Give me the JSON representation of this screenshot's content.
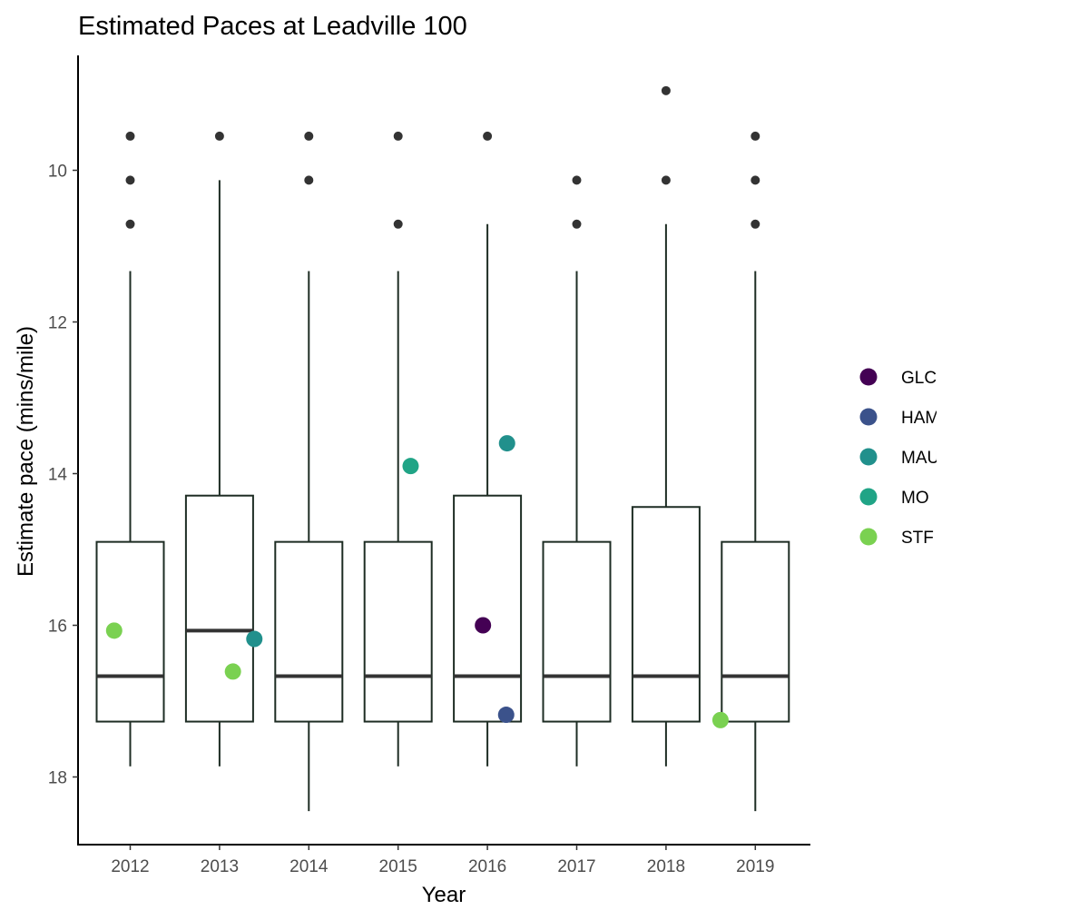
{
  "chart_data": {
    "type": "box",
    "title": "Estimated Paces at Leadville 100",
    "xlabel": "Year",
    "ylabel": "Estimate pace (mins/mile)",
    "y_reversed": true,
    "ylim": [
      18.9,
      8.7
    ],
    "yticks": [
      10,
      12,
      14,
      16,
      18
    ],
    "categories": [
      "2012",
      "2013",
      "2014",
      "2015",
      "2016",
      "2017",
      "2018",
      "2019"
    ],
    "boxes": [
      {
        "year": "2012",
        "whisker_low": 11.33,
        "q1": 14.9,
        "median": 16.67,
        "q3": 17.27,
        "whisker_high": 17.86,
        "outliers": [
          9.55,
          10.13,
          10.71
        ]
      },
      {
        "year": "2013",
        "whisker_low": 10.13,
        "q1": 14.29,
        "median": 16.07,
        "q3": 17.27,
        "whisker_high": 17.86,
        "outliers": [
          9.55
        ]
      },
      {
        "year": "2014",
        "whisker_low": 11.33,
        "q1": 14.9,
        "median": 16.67,
        "q3": 17.27,
        "whisker_high": 18.45,
        "outliers": [
          9.55,
          10.13
        ]
      },
      {
        "year": "2015",
        "whisker_low": 11.33,
        "q1": 14.9,
        "median": 16.67,
        "q3": 17.27,
        "whisker_high": 17.86,
        "outliers": [
          9.55,
          10.71
        ]
      },
      {
        "year": "2016",
        "whisker_low": 10.71,
        "q1": 14.29,
        "median": 16.67,
        "q3": 17.27,
        "whisker_high": 17.86,
        "outliers": [
          9.55
        ]
      },
      {
        "year": "2017",
        "whisker_low": 11.33,
        "q1": 14.9,
        "median": 16.67,
        "q3": 17.27,
        "whisker_high": 17.86,
        "outliers": [
          10.13,
          10.71
        ]
      },
      {
        "year": "2018",
        "whisker_low": 10.71,
        "q1": 14.44,
        "median": 16.67,
        "q3": 17.27,
        "whisker_high": 17.86,
        "outliers": [
          8.95,
          10.13
        ]
      },
      {
        "year": "2019",
        "whisker_low": 11.33,
        "q1": 14.9,
        "median": 16.67,
        "q3": 17.27,
        "whisker_high": 18.45,
        "outliers": [
          9.55,
          10.13,
          10.71
        ]
      }
    ],
    "points": [
      {
        "year": "2012",
        "offset": -0.18,
        "pace": 16.07,
        "series": "STF"
      },
      {
        "year": "2013",
        "offset": 0.15,
        "pace": 16.61,
        "series": "STF"
      },
      {
        "year": "2013",
        "offset": 0.39,
        "pace": 16.18,
        "series": "MAU"
      },
      {
        "year": "2015",
        "offset": 0.14,
        "pace": 13.9,
        "series": "MO"
      },
      {
        "year": "2016",
        "offset": -0.05,
        "pace": 16.0,
        "series": "GLC"
      },
      {
        "year": "2016",
        "offset": 0.22,
        "pace": 13.6,
        "series": "MAU"
      },
      {
        "year": "2016",
        "offset": 0.21,
        "pace": 17.18,
        "series": "HAM"
      },
      {
        "year": "2019",
        "offset": -0.39,
        "pace": 17.25,
        "series": "STF"
      }
    ],
    "legend": {
      "placement": "right",
      "entries": [
        {
          "label": "GLC",
          "color": "#440154"
        },
        {
          "label": "HAM",
          "color": "#3b528b"
        },
        {
          "label": "MAU",
          "color": "#21908c"
        },
        {
          "label": "MO",
          "color": "#20a486"
        },
        {
          "label": "STF",
          "color": "#7ad151"
        }
      ]
    },
    "colors": {
      "box_stroke": "#1e2d24",
      "median": "#333333",
      "outlier": "#333333"
    },
    "grid": false
  }
}
